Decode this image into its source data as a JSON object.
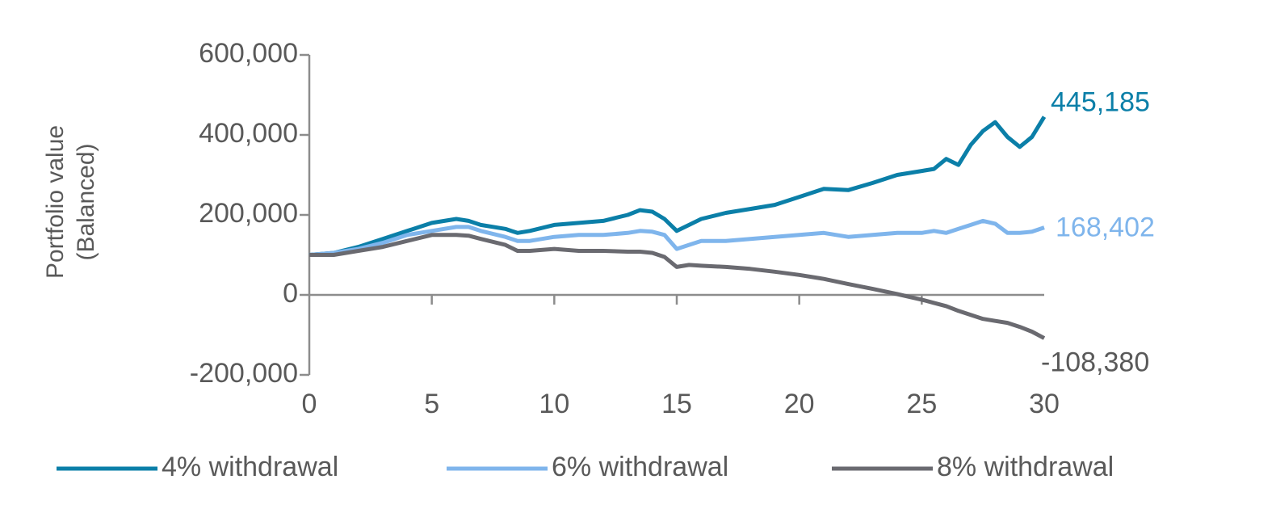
{
  "chart_data": {
    "type": "line",
    "ylabel": [
      "Portfolio value",
      "(Balanced)"
    ],
    "x": [
      0,
      1,
      2,
      3,
      4,
      5,
      6,
      6.5,
      7,
      8,
      8.5,
      9,
      10,
      11,
      12,
      13,
      13.5,
      14,
      14.5,
      15,
      15.5,
      16,
      17,
      18,
      19,
      20,
      21,
      22,
      23,
      24,
      25,
      25.5,
      26,
      26.5,
      27,
      27.5,
      28,
      28.5,
      29,
      29.5,
      30
    ],
    "xlim": [
      0,
      30
    ],
    "xticks": [
      0,
      5,
      10,
      15,
      20,
      25,
      30
    ],
    "ylim": [
      -200000,
      600000
    ],
    "yticks": [
      {
        "value": -200000,
        "label": "-200,000"
      },
      0,
      {
        "value": 200000,
        "label": "200,000"
      },
      {
        "value": 400000,
        "label": "400,000"
      },
      {
        "value": 600000,
        "label": "600,000"
      }
    ],
    "legend": "bottom",
    "series": [
      {
        "name": "4% withdrawal",
        "color": "#0b7fa8",
        "values": [
          100000,
          105000,
          120000,
          140000,
          160000,
          180000,
          190000,
          185000,
          175000,
          165000,
          155000,
          160000,
          175000,
          180000,
          185000,
          200000,
          212000,
          208000,
          190000,
          160000,
          175000,
          190000,
          205000,
          215000,
          225000,
          245000,
          265000,
          262000,
          280000,
          300000,
          310000,
          315000,
          340000,
          325000,
          375000,
          410000,
          432000,
          395000,
          370000,
          395000,
          445185
        ],
        "value_labels": [
          null,
          null,
          null,
          null,
          null,
          null,
          null,
          null,
          null,
          null,
          null,
          null,
          null,
          null,
          null,
          null,
          null,
          null,
          null,
          null,
          null,
          null,
          null,
          null,
          null,
          null,
          null,
          null,
          null,
          null,
          null,
          null,
          null,
          null,
          null,
          null,
          null,
          null,
          null,
          null,
          "445,185"
        ]
      },
      {
        "name": "6% withdrawal",
        "color": "#7fb5ec",
        "values": [
          100000,
          105000,
          115000,
          130000,
          150000,
          160000,
          170000,
          170000,
          160000,
          145000,
          135000,
          135000,
          145000,
          150000,
          150000,
          155000,
          160000,
          158000,
          150000,
          115000,
          125000,
          135000,
          135000,
          140000,
          145000,
          150000,
          155000,
          145000,
          150000,
          155000,
          155000,
          160000,
          155000,
          165000,
          175000,
          185000,
          178000,
          155000,
          155000,
          158000,
          168402
        ],
        "value_labels": [
          null,
          null,
          null,
          null,
          null,
          null,
          null,
          null,
          null,
          null,
          null,
          null,
          null,
          null,
          null,
          null,
          null,
          null,
          null,
          null,
          null,
          null,
          null,
          null,
          null,
          null,
          null,
          null,
          null,
          null,
          null,
          null,
          null,
          null,
          null,
          null,
          null,
          null,
          null,
          null,
          "168,402"
        ]
      },
      {
        "name": "8% withdrawal",
        "color": "#6a6a70",
        "values": [
          100000,
          100000,
          110000,
          120000,
          135000,
          150000,
          150000,
          148000,
          140000,
          125000,
          110000,
          110000,
          115000,
          110000,
          110000,
          108000,
          108000,
          105000,
          95000,
          70000,
          75000,
          73000,
          70000,
          65000,
          58000,
          50000,
          40000,
          27000,
          15000,
          2000,
          -12000,
          -20000,
          -28000,
          -40000,
          -50000,
          -60000,
          -65000,
          -70000,
          -80000,
          -92000,
          -108380
        ],
        "value_labels": [
          null,
          null,
          null,
          null,
          null,
          null,
          null,
          null,
          null,
          null,
          null,
          null,
          null,
          null,
          null,
          null,
          null,
          null,
          null,
          null,
          null,
          null,
          null,
          null,
          null,
          null,
          null,
          null,
          null,
          null,
          null,
          null,
          null,
          null,
          null,
          null,
          null,
          null,
          null,
          null,
          "-108,380"
        ]
      }
    ]
  }
}
